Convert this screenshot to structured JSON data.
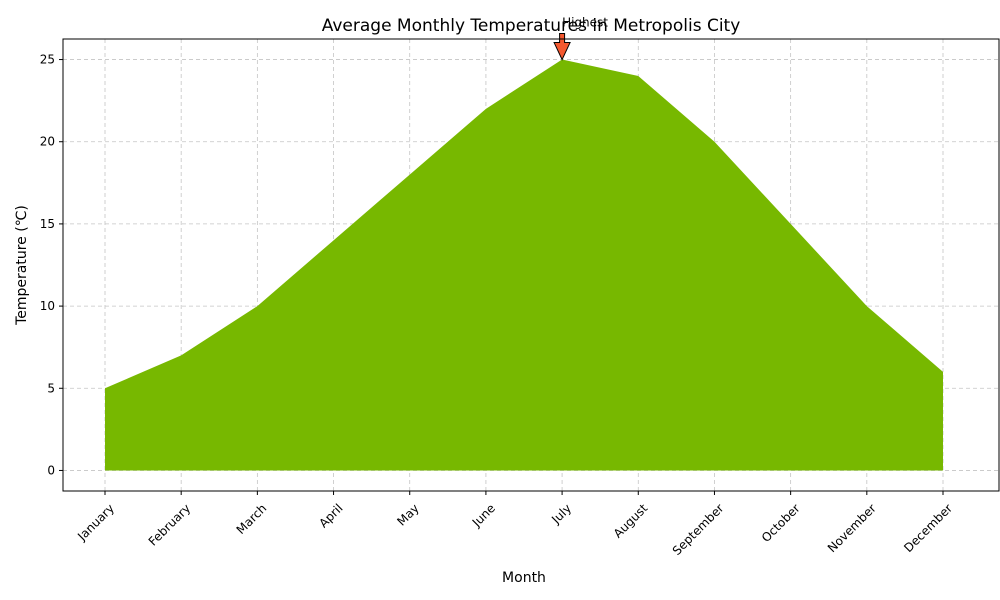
{
  "chart_data": {
    "type": "area",
    "title": "Average Monthly Temperatures in Metropolis City",
    "xlabel": "Month",
    "ylabel": "Temperature (℃)",
    "categories": [
      "January",
      "February",
      "March",
      "April",
      "May",
      "June",
      "July",
      "August",
      "September",
      "October",
      "November",
      "December"
    ],
    "values": [
      5,
      7,
      10,
      14,
      18,
      22,
      25,
      24,
      20,
      15,
      10,
      6
    ],
    "ylim": [
      -1.25,
      26.25
    ],
    "yticks": [
      0,
      5,
      10,
      15,
      20,
      25
    ],
    "grid": true,
    "fill_color": "#77b800",
    "annotation": {
      "text": "Highest",
      "category": "July",
      "value": 25,
      "arrow_color": "#f4582f"
    }
  }
}
